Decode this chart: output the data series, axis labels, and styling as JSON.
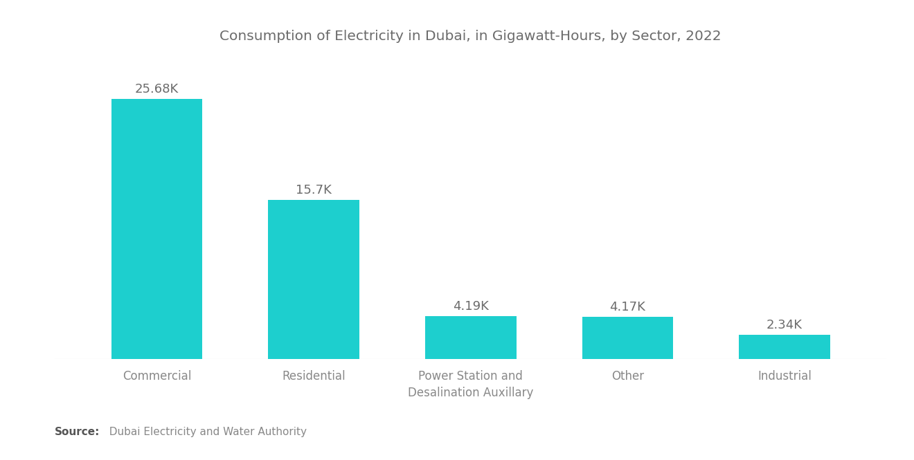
{
  "title": "Consumption of Electricity in Dubai, in Gigawatt-Hours, by Sector, 2022",
  "categories": [
    "Commercial",
    "Residential",
    "Power Station and\nDesalination Auxillary",
    "Other",
    "Industrial"
  ],
  "values": [
    25680,
    15700,
    4190,
    4170,
    2340
  ],
  "labels": [
    "25.68K",
    "15.7K",
    "4.19K",
    "4.17K",
    "2.34K"
  ],
  "bar_color": "#1DCFCE",
  "background_color": "#FFFFFF",
  "title_color": "#6B6B6B",
  "label_color": "#6B6B6B",
  "tick_color": "#888888",
  "source_bold": "Source:",
  "source_text": "  Dubai Electricity and Water Authority",
  "ylim": [
    0,
    30000
  ],
  "bar_width": 0.58
}
